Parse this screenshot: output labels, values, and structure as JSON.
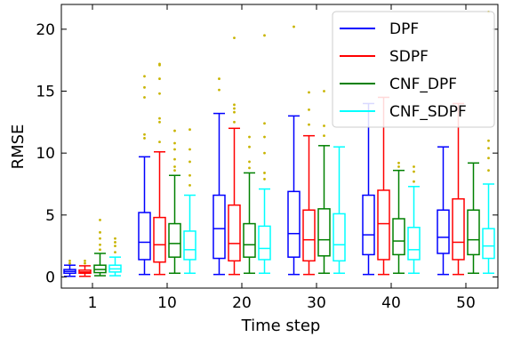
{
  "chart_data": {
    "type": "box",
    "xlabel": "Time step",
    "ylabel": "RMSE",
    "ylim": [
      -0.9,
      22
    ],
    "yticks": [
      0,
      5,
      10,
      15,
      20
    ],
    "categories": [
      "1",
      "10",
      "20",
      "30",
      "40",
      "50"
    ],
    "legend_position": "top-right",
    "outlier_color": "#c8b400",
    "series": [
      {
        "name": "DPF",
        "color": "#0000ff",
        "boxes": [
          {
            "whislo": 0.05,
            "q1": 0.3,
            "med": 0.45,
            "q3": 0.6,
            "whishi": 0.95,
            "fliers": [
              1.1,
              1.3
            ]
          },
          {
            "whislo": 0.2,
            "q1": 1.4,
            "med": 2.8,
            "q3": 5.2,
            "whishi": 9.7,
            "fliers": [
              11.2,
              11.5,
              14.5,
              15.3,
              16.2
            ]
          },
          {
            "whislo": 0.2,
            "q1": 1.5,
            "med": 3.9,
            "q3": 6.6,
            "whishi": 13.2,
            "fliers": [
              15.1,
              16.0
            ]
          },
          {
            "whislo": 0.2,
            "q1": 1.6,
            "med": 3.5,
            "q3": 6.9,
            "whishi": 13.0,
            "fliers": [
              20.2
            ]
          },
          {
            "whislo": 0.2,
            "q1": 1.8,
            "med": 3.4,
            "q3": 6.6,
            "whishi": 14.0,
            "fliers": []
          },
          {
            "whislo": 0.2,
            "q1": 1.9,
            "med": 3.2,
            "q3": 5.4,
            "whishi": 10.5,
            "fliers": []
          }
        ]
      },
      {
        "name": "SDPF",
        "color": "#ff0000",
        "boxes": [
          {
            "whislo": 0.05,
            "q1": 0.3,
            "med": 0.4,
            "q3": 0.55,
            "whishi": 0.9,
            "fliers": [
              1.1,
              1.3
            ]
          },
          {
            "whislo": 0.2,
            "q1": 1.2,
            "med": 2.6,
            "q3": 4.8,
            "whishi": 10.1,
            "fliers": [
              10.9,
              12.5,
              12.8,
              14.8,
              16.0,
              17.1,
              17.2
            ]
          },
          {
            "whislo": 0.2,
            "q1": 1.3,
            "med": 2.7,
            "q3": 5.8,
            "whishi": 12.0,
            "fliers": [
              12.5,
              13.3,
              13.6,
              13.9,
              19.3
            ]
          },
          {
            "whislo": 0.2,
            "q1": 1.3,
            "med": 3.0,
            "q3": 5.4,
            "whishi": 11.4,
            "fliers": [
              12.3,
              13.5,
              14.9
            ]
          },
          {
            "whislo": 0.2,
            "q1": 1.4,
            "med": 4.3,
            "q3": 7.0,
            "whishi": 14.5,
            "fliers": []
          },
          {
            "whislo": 0.2,
            "q1": 1.4,
            "med": 2.8,
            "q3": 6.3,
            "whishi": 14.0,
            "fliers": []
          }
        ]
      },
      {
        "name": "CNF_DPF",
        "color": "#008000",
        "boxes": [
          {
            "whislo": 0.1,
            "q1": 0.35,
            "med": 0.6,
            "q3": 0.95,
            "whishi": 1.9,
            "fliers": [
              2.2,
              2.6,
              3.1,
              3.6,
              4.6
            ]
          },
          {
            "whislo": 0.3,
            "q1": 1.6,
            "med": 2.7,
            "q3": 4.3,
            "whishi": 8.2,
            "fliers": [
              8.6,
              8.9,
              9.5,
              10.3,
              10.8,
              11.8
            ]
          },
          {
            "whislo": 0.3,
            "q1": 1.6,
            "med": 2.6,
            "q3": 4.3,
            "whishi": 8.4,
            "fliers": [
              8.8,
              9.3,
              10.5,
              11.3
            ]
          },
          {
            "whislo": 0.3,
            "q1": 1.7,
            "med": 3.0,
            "q3": 5.5,
            "whishi": 10.6,
            "fliers": [
              11.4,
              12.2,
              15.0
            ]
          },
          {
            "whislo": 0.3,
            "q1": 1.8,
            "med": 2.9,
            "q3": 4.7,
            "whishi": 8.6,
            "fliers": [
              8.9,
              9.2
            ]
          },
          {
            "whislo": 0.3,
            "q1": 1.8,
            "med": 3.0,
            "q3": 5.4,
            "whishi": 9.2,
            "fliers": []
          }
        ]
      },
      {
        "name": "CNF_SDPF",
        "color": "#00ffff",
        "boxes": [
          {
            "whislo": 0.1,
            "q1": 0.4,
            "med": 0.65,
            "q3": 0.95,
            "whishi": 1.6,
            "fliers": [
              2.0,
              2.5,
              2.8,
              3.1
            ]
          },
          {
            "whislo": 0.3,
            "q1": 1.4,
            "med": 2.2,
            "q3": 3.7,
            "whishi": 6.6,
            "fliers": [
              7.4,
              8.2,
              9.3,
              10.3,
              11.9
            ]
          },
          {
            "whislo": 0.3,
            "q1": 1.4,
            "med": 2.3,
            "q3": 4.1,
            "whishi": 7.1,
            "fliers": [
              7.9,
              8.4,
              10.0,
              11.3,
              12.4,
              19.5
            ]
          },
          {
            "whislo": 0.3,
            "q1": 1.3,
            "med": 2.6,
            "q3": 5.1,
            "whishi": 10.5,
            "fliers": []
          },
          {
            "whislo": 0.3,
            "q1": 1.4,
            "med": 2.2,
            "q3": 4.0,
            "whishi": 7.3,
            "fliers": [
              7.7,
              8.5,
              8.9
            ]
          },
          {
            "whislo": 0.3,
            "q1": 1.5,
            "med": 2.5,
            "q3": 3.9,
            "whishi": 7.5,
            "fliers": [
              8.6,
              9.6,
              10.4,
              11.0,
              21.4
            ]
          }
        ]
      }
    ]
  }
}
